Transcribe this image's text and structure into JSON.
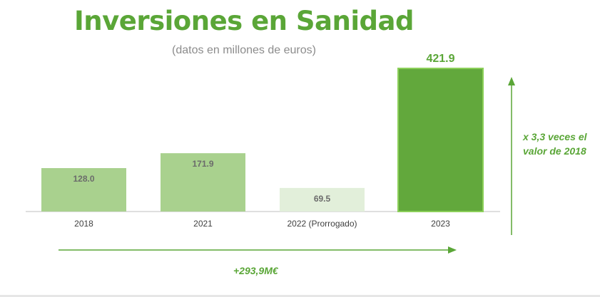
{
  "title": "Inversiones en Sanidad",
  "subtitle": "(datos en millones de euros)",
  "annotations": {
    "vertical_note_line1": "x 3,3 veces el",
    "vertical_note_line2": "valor de 2018",
    "horizontal_note": "+293,9M€"
  },
  "colors": {
    "accent": "#5aa637",
    "bar_light": "#a9d18e",
    "bar_pale": "#e2efda",
    "bar_dark": "#62a83c",
    "bar_dark_border": "#8cd05a",
    "axis": "#bfbfbf"
  },
  "chart_data": {
    "type": "bar",
    "title": "Inversiones en Sanidad",
    "subtitle": "(datos en millones de euros)",
    "categories": [
      "2018",
      "2021",
      "2022 (Prorrogado)",
      "2023"
    ],
    "values": [
      128.0,
      171.9,
      69.5,
      421.9
    ],
    "labels": [
      "128.0",
      "171.9",
      "69.5",
      "421.9"
    ],
    "bar_colors": [
      "#a9d18e",
      "#a9d18e",
      "#e2efda",
      "#62a83c"
    ],
    "xlabel": "",
    "ylabel": "",
    "ylim": [
      0,
      421.9
    ],
    "grid": false,
    "legend": "none"
  }
}
